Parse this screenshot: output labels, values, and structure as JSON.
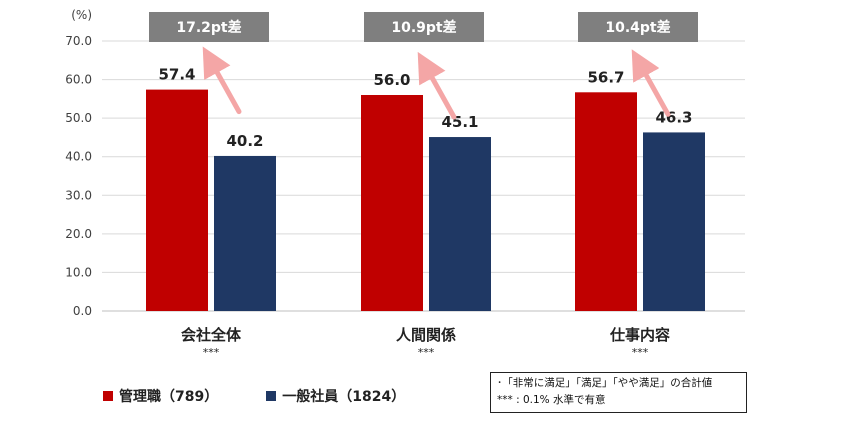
{
  "chart_data": {
    "type": "bar",
    "unit_label": "(%)",
    "ylim": [
      0,
      70
    ],
    "yticks": [
      "0.0",
      "10.0",
      "20.0",
      "30.0",
      "40.0",
      "50.0",
      "60.0",
      "70.0"
    ],
    "categories": [
      "会社全体",
      "人間関係",
      "仕事内容"
    ],
    "significance": [
      "***",
      "***",
      "***"
    ],
    "series": [
      {
        "name": "管理職（789）",
        "color": "#c00000",
        "values": [
          57.4,
          56.0,
          56.7
        ]
      },
      {
        "name": "一般社員（1824）",
        "color": "#1f3864",
        "values": [
          40.2,
          45.1,
          46.3
        ]
      }
    ],
    "value_labels": [
      [
        "57.4",
        "56.0",
        "56.7"
      ],
      [
        "40.2",
        "45.1",
        "46.3"
      ]
    ],
    "differences": [
      "17.2pt差",
      "10.9pt差",
      "10.4pt差"
    ],
    "diff_box_color": "#7f7f7f",
    "arrow_color": "#f4a6a6",
    "grid": true
  },
  "note": {
    "line1": "･「非常に満足」「満足」「やや満足」の合計値",
    "line2": "*** : 0.1% 水準で有意"
  }
}
